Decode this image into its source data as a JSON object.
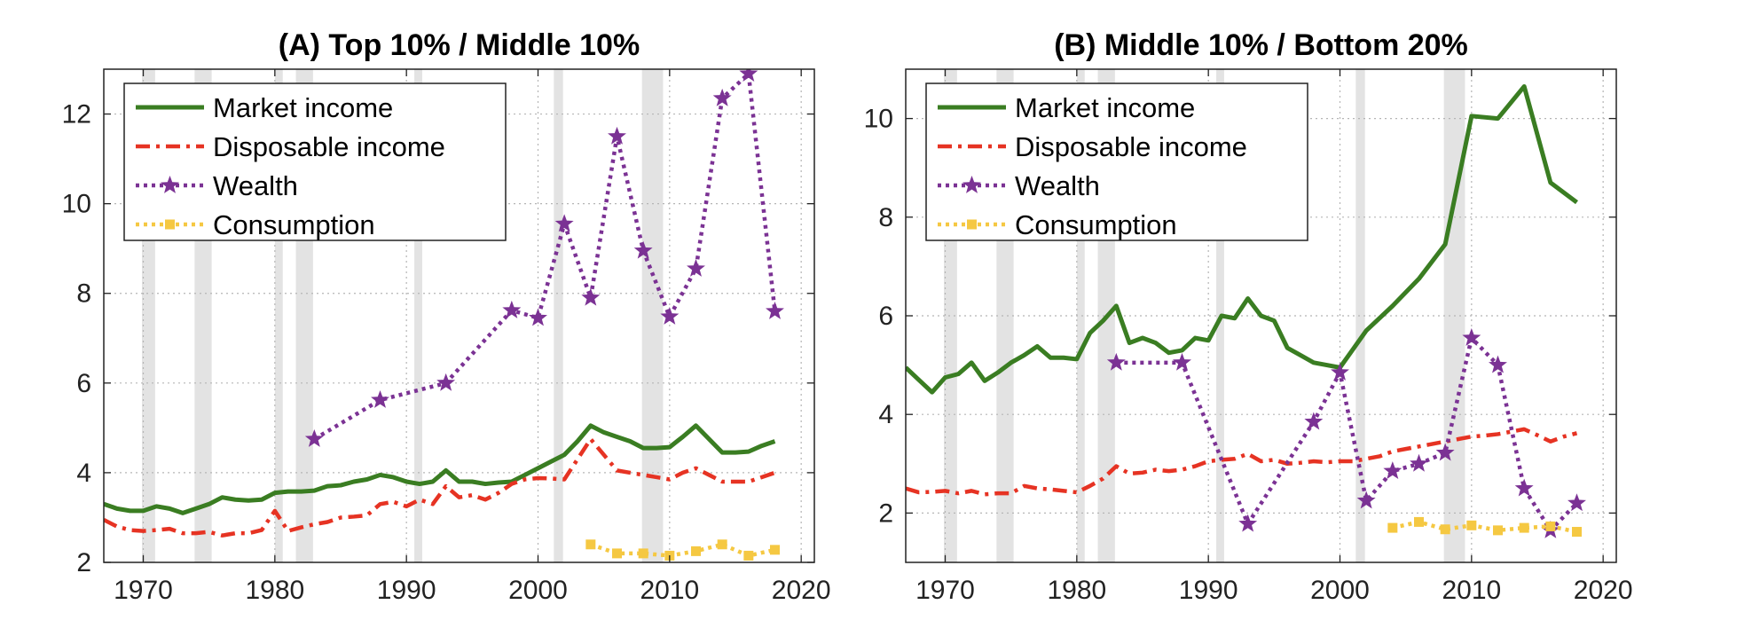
{
  "chart_data": [
    {
      "type": "line",
      "title": "(A) Top 10% / Middle 10%",
      "xlabel": "",
      "ylabel": "",
      "xlim": [
        1967,
        2021
      ],
      "ylim": [
        2,
        13
      ],
      "xticks": [
        1970,
        1980,
        1990,
        2000,
        2010,
        2020
      ],
      "yticks": [
        2,
        4,
        6,
        8,
        10,
        12
      ],
      "grid": true,
      "legend_position": "top-left",
      "recession_bands": [
        [
          1969.9,
          1970.9
        ],
        [
          1973.9,
          1975.2
        ],
        [
          1980.0,
          1980.6
        ],
        [
          1981.6,
          1982.9
        ],
        [
          1990.6,
          1991.2
        ],
        [
          2001.2,
          2001.9
        ],
        [
          2007.9,
          2009.5
        ]
      ],
      "series": [
        {
          "name": "Market income",
          "color": "#3a7d22",
          "style": "solid",
          "x": [
            1967,
            1968,
            1969,
            1970,
            1971,
            1972,
            1973,
            1974,
            1975,
            1976,
            1977,
            1978,
            1979,
            1980,
            1981,
            1982,
            1983,
            1984,
            1985,
            1986,
            1987,
            1988,
            1989,
            1990,
            1991,
            1992,
            1993,
            1994,
            1995,
            1996,
            1997,
            1998,
            1999,
            2000,
            2001,
            2002,
            2003,
            2004,
            2005,
            2006,
            2007,
            2008,
            2009,
            2010,
            2011,
            2012,
            2013,
            2014,
            2015,
            2016,
            2017,
            2018
          ],
          "y": [
            3.3,
            3.2,
            3.15,
            3.15,
            3.25,
            3.2,
            3.1,
            3.2,
            3.3,
            3.45,
            3.4,
            3.38,
            3.4,
            3.55,
            3.58,
            3.58,
            3.6,
            3.7,
            3.72,
            3.8,
            3.85,
            3.95,
            3.9,
            3.8,
            3.75,
            3.8,
            4.05,
            3.8,
            3.8,
            3.75,
            3.78,
            3.8,
            3.95,
            4.1,
            4.25,
            4.4,
            4.7,
            5.05,
            4.9,
            4.8,
            4.7,
            4.55,
            4.55,
            4.57,
            4.8,
            5.05,
            4.75,
            4.45,
            4.45,
            4.47,
            4.6,
            4.7
          ]
        },
        {
          "name": "Disposable income",
          "color": "#e63323",
          "style": "dashdot",
          "x": [
            1967,
            1968,
            1969,
            1970,
            1971,
            1972,
            1973,
            1974,
            1975,
            1976,
            1977,
            1978,
            1979,
            1980,
            1981,
            1982,
            1983,
            1984,
            1985,
            1986,
            1987,
            1988,
            1989,
            1990,
            1991,
            1992,
            1993,
            1994,
            1995,
            1996,
            1997,
            1998,
            1999,
            2000,
            2001,
            2002,
            2003,
            2004,
            2005,
            2006,
            2007,
            2008,
            2009,
            2010,
            2011,
            2012,
            2013,
            2014,
            2015,
            2016,
            2017,
            2018
          ],
          "y": [
            2.95,
            2.8,
            2.72,
            2.7,
            2.72,
            2.75,
            2.65,
            2.65,
            2.68,
            2.6,
            2.65,
            2.65,
            2.72,
            3.15,
            2.7,
            2.78,
            2.85,
            2.9,
            3.0,
            3.02,
            3.05,
            3.3,
            3.35,
            3.25,
            3.4,
            3.3,
            3.7,
            3.45,
            3.5,
            3.4,
            3.55,
            3.75,
            3.85,
            3.88,
            3.87,
            3.85,
            4.3,
            4.75,
            4.4,
            4.05,
            4.0,
            3.95,
            3.9,
            3.85,
            4.0,
            4.1,
            3.95,
            3.8,
            3.8,
            3.8,
            3.9,
            4.0
          ]
        },
        {
          "name": "Wealth",
          "color": "#7b3294",
          "style": "dotted-star",
          "x": [
            1983,
            1988,
            1993,
            1998,
            2000,
            2002,
            2004,
            2006,
            2008,
            2010,
            2012,
            2014,
            2016,
            2018
          ],
          "y": [
            4.75,
            5.62,
            6.0,
            7.62,
            7.45,
            9.55,
            7.9,
            11.5,
            8.95,
            7.48,
            8.55,
            12.35,
            12.9,
            7.6
          ]
        },
        {
          "name": "Consumption",
          "color": "#f5c842",
          "style": "dotted-square",
          "x": [
            2004,
            2006,
            2008,
            2010,
            2012,
            2014,
            2016,
            2018
          ],
          "y": [
            2.4,
            2.2,
            2.2,
            2.15,
            2.25,
            2.4,
            2.15,
            2.28
          ]
        }
      ]
    },
    {
      "type": "line",
      "title": "(B) Middle 10% / Bottom 20%",
      "xlabel": "",
      "ylabel": "",
      "xlim": [
        1967,
        2021
      ],
      "ylim": [
        1,
        11
      ],
      "xticks": [
        1970,
        1980,
        1990,
        2000,
        2010,
        2020
      ],
      "yticks": [
        2,
        4,
        6,
        8,
        10
      ],
      "grid": true,
      "legend_position": "top-left",
      "recession_bands": [
        [
          1969.9,
          1970.9
        ],
        [
          1973.9,
          1975.2
        ],
        [
          1980.0,
          1980.6
        ],
        [
          1981.6,
          1982.9
        ],
        [
          1990.6,
          1991.2
        ],
        [
          2001.2,
          2001.9
        ],
        [
          2007.9,
          2009.5
        ]
      ],
      "series": [
        {
          "name": "Market income",
          "color": "#3a7d22",
          "style": "solid",
          "x": [
            1967,
            1968,
            1969,
            1970,
            1971,
            1972,
            1973,
            1974,
            1975,
            1976,
            1977,
            1978,
            1979,
            1980,
            1981,
            1982,
            1983,
            1984,
            1985,
            1986,
            1987,
            1988,
            1989,
            1990,
            1991,
            1992,
            1993,
            1994,
            1995,
            1996,
            1997,
            1998,
            1999,
            2000,
            2002,
            2004,
            2006,
            2008,
            2010,
            2012,
            2014,
            2016,
            2018
          ],
          "y": [
            4.95,
            4.7,
            4.45,
            4.75,
            4.82,
            5.05,
            4.68,
            4.85,
            5.05,
            5.2,
            5.38,
            5.15,
            5.15,
            5.12,
            5.65,
            5.9,
            6.2,
            5.45,
            5.55,
            5.45,
            5.25,
            5.3,
            5.55,
            5.5,
            6.0,
            5.95,
            6.35,
            6.0,
            5.9,
            5.35,
            5.2,
            5.05,
            5.0,
            4.95,
            5.7,
            6.2,
            6.75,
            7.45,
            10.05,
            10.0,
            10.65,
            8.7,
            8.3
          ]
        },
        {
          "name": "Disposable income",
          "color": "#e63323",
          "style": "dashdot",
          "x": [
            1967,
            1968,
            1969,
            1970,
            1971,
            1972,
            1973,
            1974,
            1975,
            1976,
            1977,
            1978,
            1979,
            1980,
            1981,
            1982,
            1983,
            1984,
            1985,
            1986,
            1987,
            1988,
            1989,
            1990,
            1991,
            1992,
            1993,
            1994,
            1995,
            1996,
            1997,
            1998,
            1999,
            2000,
            2001,
            2002,
            2003,
            2004,
            2005,
            2006,
            2007,
            2008,
            2009,
            2010,
            2011,
            2012,
            2013,
            2014,
            2015,
            2016,
            2017,
            2018
          ],
          "y": [
            2.5,
            2.42,
            2.43,
            2.45,
            2.4,
            2.45,
            2.38,
            2.4,
            2.4,
            2.55,
            2.5,
            2.48,
            2.45,
            2.42,
            2.55,
            2.7,
            2.95,
            2.8,
            2.82,
            2.88,
            2.85,
            2.88,
            2.95,
            3.05,
            3.08,
            3.1,
            3.2,
            3.05,
            3.08,
            3.0,
            3.02,
            3.05,
            3.03,
            3.05,
            3.05,
            3.1,
            3.15,
            3.25,
            3.3,
            3.35,
            3.4,
            3.45,
            3.5,
            3.55,
            3.57,
            3.6,
            3.65,
            3.7,
            3.58,
            3.45,
            3.55,
            3.62
          ]
        },
        {
          "name": "Wealth",
          "color": "#7b3294",
          "style": "dotted-star",
          "x": [
            1983,
            1988,
            1993,
            1998,
            2000,
            2002,
            2004,
            2006,
            2008,
            2010,
            2012,
            2014,
            2016,
            2018
          ],
          "y": [
            5.05,
            5.05,
            1.78,
            3.85,
            4.85,
            2.25,
            2.85,
            3.0,
            3.22,
            5.55,
            5.0,
            2.5,
            1.65,
            2.2
          ]
        },
        {
          "name": "Consumption",
          "color": "#f5c842",
          "style": "dotted-square",
          "x": [
            2004,
            2006,
            2008,
            2010,
            2012,
            2014,
            2016,
            2018
          ],
          "y": [
            1.7,
            1.82,
            1.67,
            1.75,
            1.65,
            1.7,
            1.73,
            1.62
          ]
        }
      ]
    }
  ]
}
